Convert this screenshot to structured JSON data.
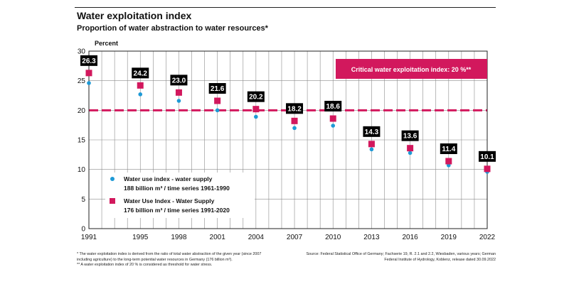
{
  "header": {
    "title": "Water exploitation index",
    "subtitle": "Proportion of water abstraction to water resources*"
  },
  "footnotes": {
    "left": [
      "* The water exploitation index is derived from the ratio of total water abstraction of the given year (since 2007 including agriculture) to the long-term potential water resources in Germany (176 billion m³).",
      "** A water exploitation index of 20 % is considered as threshold for water stress."
    ],
    "right": "Source: Federal Statistical Office of Germany; Fachserie 19, R. 2.1 and 2.2, Wiesbaden, various years; German Federal Institute of Hydrology, Koblenz, release dated 30.09.2022"
  },
  "colors": {
    "accent": "#d2185d",
    "secondary": "#1e9ad6",
    "label_bg": "#000000",
    "label_text": "#ffffff"
  },
  "chart_data": {
    "type": "scatter",
    "ylabel": "Percent",
    "ylim": [
      0,
      30
    ],
    "yticks": [
      0,
      5,
      10,
      15,
      20,
      25,
      30
    ],
    "xlim": [
      1991,
      2022
    ],
    "grid": true,
    "x_tick_labels": [
      "1991",
      "1995",
      "1998",
      "2001",
      "2004",
      "2007",
      "2010",
      "2013",
      "2016",
      "2019",
      "2022"
    ],
    "threshold": {
      "value": 20,
      "label": "Critical water exploitation index: 20 %**"
    },
    "series": [
      {
        "name": "Water use index - water supply",
        "legend": [
          "Water use index - water supply",
          "188 billion m³ / time series 1961-1990"
        ],
        "marker": "circle",
        "x": [
          1991,
          1995,
          1998,
          2001,
          2004,
          2007,
          2010,
          2013,
          2016,
          2019,
          2022
        ],
        "values": [
          24.6,
          22.7,
          21.6,
          20.0,
          18.9,
          17.0,
          17.4,
          13.4,
          12.8,
          10.7,
          9.6
        ]
      },
      {
        "name": "Water Use Index - Water Supply",
        "legend": [
          "Water Use Index - Water Supply",
          "176 billion m³ / time series 1991-2020"
        ],
        "marker": "square",
        "x": [
          1991,
          1995,
          1998,
          2001,
          2004,
          2007,
          2010,
          2013,
          2016,
          2019,
          2022
        ],
        "values": [
          26.3,
          24.2,
          23.0,
          21.6,
          20.2,
          18.2,
          18.6,
          14.3,
          13.6,
          11.4,
          10.1
        ],
        "labels": [
          "26.3",
          "24.2",
          "23.0",
          "21.6",
          "20.2",
          "18.2",
          "18.6",
          "14.3",
          "13.6",
          "11.4",
          "10.1"
        ]
      }
    ]
  }
}
